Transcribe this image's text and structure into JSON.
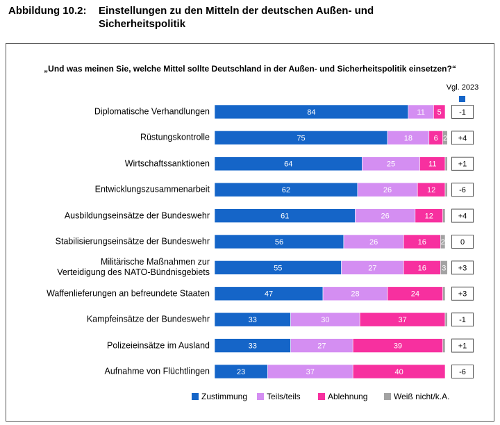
{
  "header": {
    "label": "Abbildung 10.2:",
    "title": "Einstellungen zu den Mitteln der deutschen Außen- und Sicherheitspolitik"
  },
  "chart_data": {
    "type": "stacked_bar",
    "orientation": "horizontal",
    "question": "„Und was meinen Sie, welche Mittel sollte Deutschland in der Außen- und Sicherheitspolitik einsetzen?“",
    "categories": [
      "Diplomatische Verhandlungen",
      "Rüstungskontrolle",
      "Wirtschaftssanktionen",
      "Entwicklungszusammenarbeit",
      "Ausbildungseinsätze der Bundeswehr",
      "Stabilisierungseinsätze der Bundeswehr",
      "Militärische Maßnahmen zur Verteidigung des NATO-Bündnisgebiets",
      "Waffenlieferungen an befreundete Staaten",
      "Kampfeinsätze der Bundeswehr",
      "Polizeieinsätze im Ausland",
      "Aufnahme von Flüchtlingen"
    ],
    "series": [
      {
        "name": "Zustimmung",
        "color": "#1565c8",
        "values": [
          84,
          75,
          64,
          62,
          61,
          56,
          55,
          47,
          33,
          33,
          23
        ]
      },
      {
        "name": "Teils/teils",
        "color": "#d48ef2",
        "values": [
          11,
          18,
          25,
          26,
          26,
          26,
          27,
          28,
          30,
          27,
          37
        ]
      },
      {
        "name": "Ablehnung",
        "color": "#f7309f",
        "values": [
          5,
          6,
          11,
          12,
          12,
          16,
          16,
          24,
          37,
          39,
          40
        ]
      },
      {
        "name": "Weiß nicht/k.A.",
        "color": "#a3a3a3",
        "values": [
          0,
          2,
          1,
          1,
          1,
          2,
          3,
          1,
          1,
          1,
          0
        ]
      }
    ],
    "xlim": [
      0,
      100
    ],
    "comparison": {
      "label": "Vgl. 2023",
      "color": "#1565c8",
      "values": [
        "-1",
        "+4",
        "+1",
        "-6",
        "+4",
        "0",
        "+3",
        "+3",
        "-1",
        "+1",
        "-6"
      ]
    },
    "legend": "bottom"
  }
}
